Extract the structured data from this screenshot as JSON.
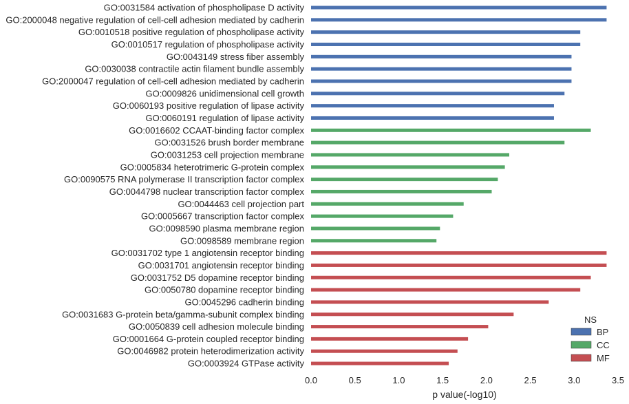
{
  "chart_data": {
    "type": "bar",
    "orientation": "horizontal",
    "xlabel": "p value(-log10)",
    "ylabel": "",
    "xlim": [
      0,
      3.5
    ],
    "xticks": [
      "0.0",
      "0.5",
      "1.0",
      "1.5",
      "2.0",
      "2.5",
      "3.0",
      "3.5"
    ],
    "grid": false,
    "legend": {
      "title": "NS",
      "placement": "lower-right",
      "entries": [
        {
          "name": "BP",
          "color": "#4c72b0"
        },
        {
          "name": "CC",
          "color": "#55a868"
        },
        {
          "name": "MF",
          "color": "#c44e52"
        }
      ]
    },
    "categories": [
      {
        "label": "GO:0031584 activation of phospholipase D activity",
        "value": 3.37,
        "ns": "BP"
      },
      {
        "label": "GO:2000048 negative regulation of cell-cell adhesion mediated by cadherin",
        "value": 3.37,
        "ns": "BP"
      },
      {
        "label": "GO:0010518 positive regulation of phospholipase activity",
        "value": 3.07,
        "ns": "BP"
      },
      {
        "label": "GO:0010517 regulation of phospholipase activity",
        "value": 3.07,
        "ns": "BP"
      },
      {
        "label": "GO:0043149 stress fiber assembly",
        "value": 2.97,
        "ns": "BP"
      },
      {
        "label": "GO:0030038 contractile actin filament bundle assembly",
        "value": 2.97,
        "ns": "BP"
      },
      {
        "label": "GO:2000047 regulation of cell-cell adhesion mediated by cadherin",
        "value": 2.97,
        "ns": "BP"
      },
      {
        "label": "GO:0009826 unidimensional cell growth",
        "value": 2.89,
        "ns": "BP"
      },
      {
        "label": "GO:0060193 positive regulation of lipase activity",
        "value": 2.77,
        "ns": "BP"
      },
      {
        "label": "GO:0060191 regulation of lipase activity",
        "value": 2.77,
        "ns": "BP"
      },
      {
        "label": "GO:0016602 CCAAT-binding factor complex",
        "value": 3.19,
        "ns": "CC"
      },
      {
        "label": "GO:0031526 brush border membrane",
        "value": 2.89,
        "ns": "CC"
      },
      {
        "label": "GO:0031253 cell projection membrane",
        "value": 2.26,
        "ns": "CC"
      },
      {
        "label": "GO:0005834 heterotrimeric G-protein complex",
        "value": 2.21,
        "ns": "CC"
      },
      {
        "label": "GO:0090575 RNA polymerase II transcription factor complex",
        "value": 2.13,
        "ns": "CC"
      },
      {
        "label": "GO:0044798 nuclear transcription factor complex",
        "value": 2.06,
        "ns": "CC"
      },
      {
        "label": "GO:0044463 cell projection part",
        "value": 1.74,
        "ns": "CC"
      },
      {
        "label": "GO:0005667 transcription factor complex",
        "value": 1.62,
        "ns": "CC"
      },
      {
        "label": "GO:0098590 plasma membrane region",
        "value": 1.47,
        "ns": "CC"
      },
      {
        "label": "GO:0098589 membrane region",
        "value": 1.43,
        "ns": "CC"
      },
      {
        "label": "GO:0031702 type 1 angiotensin receptor binding",
        "value": 3.37,
        "ns": "MF"
      },
      {
        "label": "GO:0031701 angiotensin receptor binding",
        "value": 3.37,
        "ns": "MF"
      },
      {
        "label": "GO:0031752 D5 dopamine receptor binding",
        "value": 3.19,
        "ns": "MF"
      },
      {
        "label": "GO:0050780 dopamine receptor binding",
        "value": 3.07,
        "ns": "MF"
      },
      {
        "label": "GO:0045296 cadherin binding",
        "value": 2.71,
        "ns": "MF"
      },
      {
        "label": "GO:0031683 G-protein beta/gamma-subunit complex binding",
        "value": 2.31,
        "ns": "MF"
      },
      {
        "label": "GO:0050839 cell adhesion molecule binding",
        "value": 2.02,
        "ns": "MF"
      },
      {
        "label": "GO:0001664 G-protein coupled receptor binding",
        "value": 1.79,
        "ns": "MF"
      },
      {
        "label": "GO:0046982 protein heterodimerization activity",
        "value": 1.67,
        "ns": "MF"
      },
      {
        "label": "GO:0003924 GTPase activity",
        "value": 1.57,
        "ns": "MF"
      }
    ]
  }
}
